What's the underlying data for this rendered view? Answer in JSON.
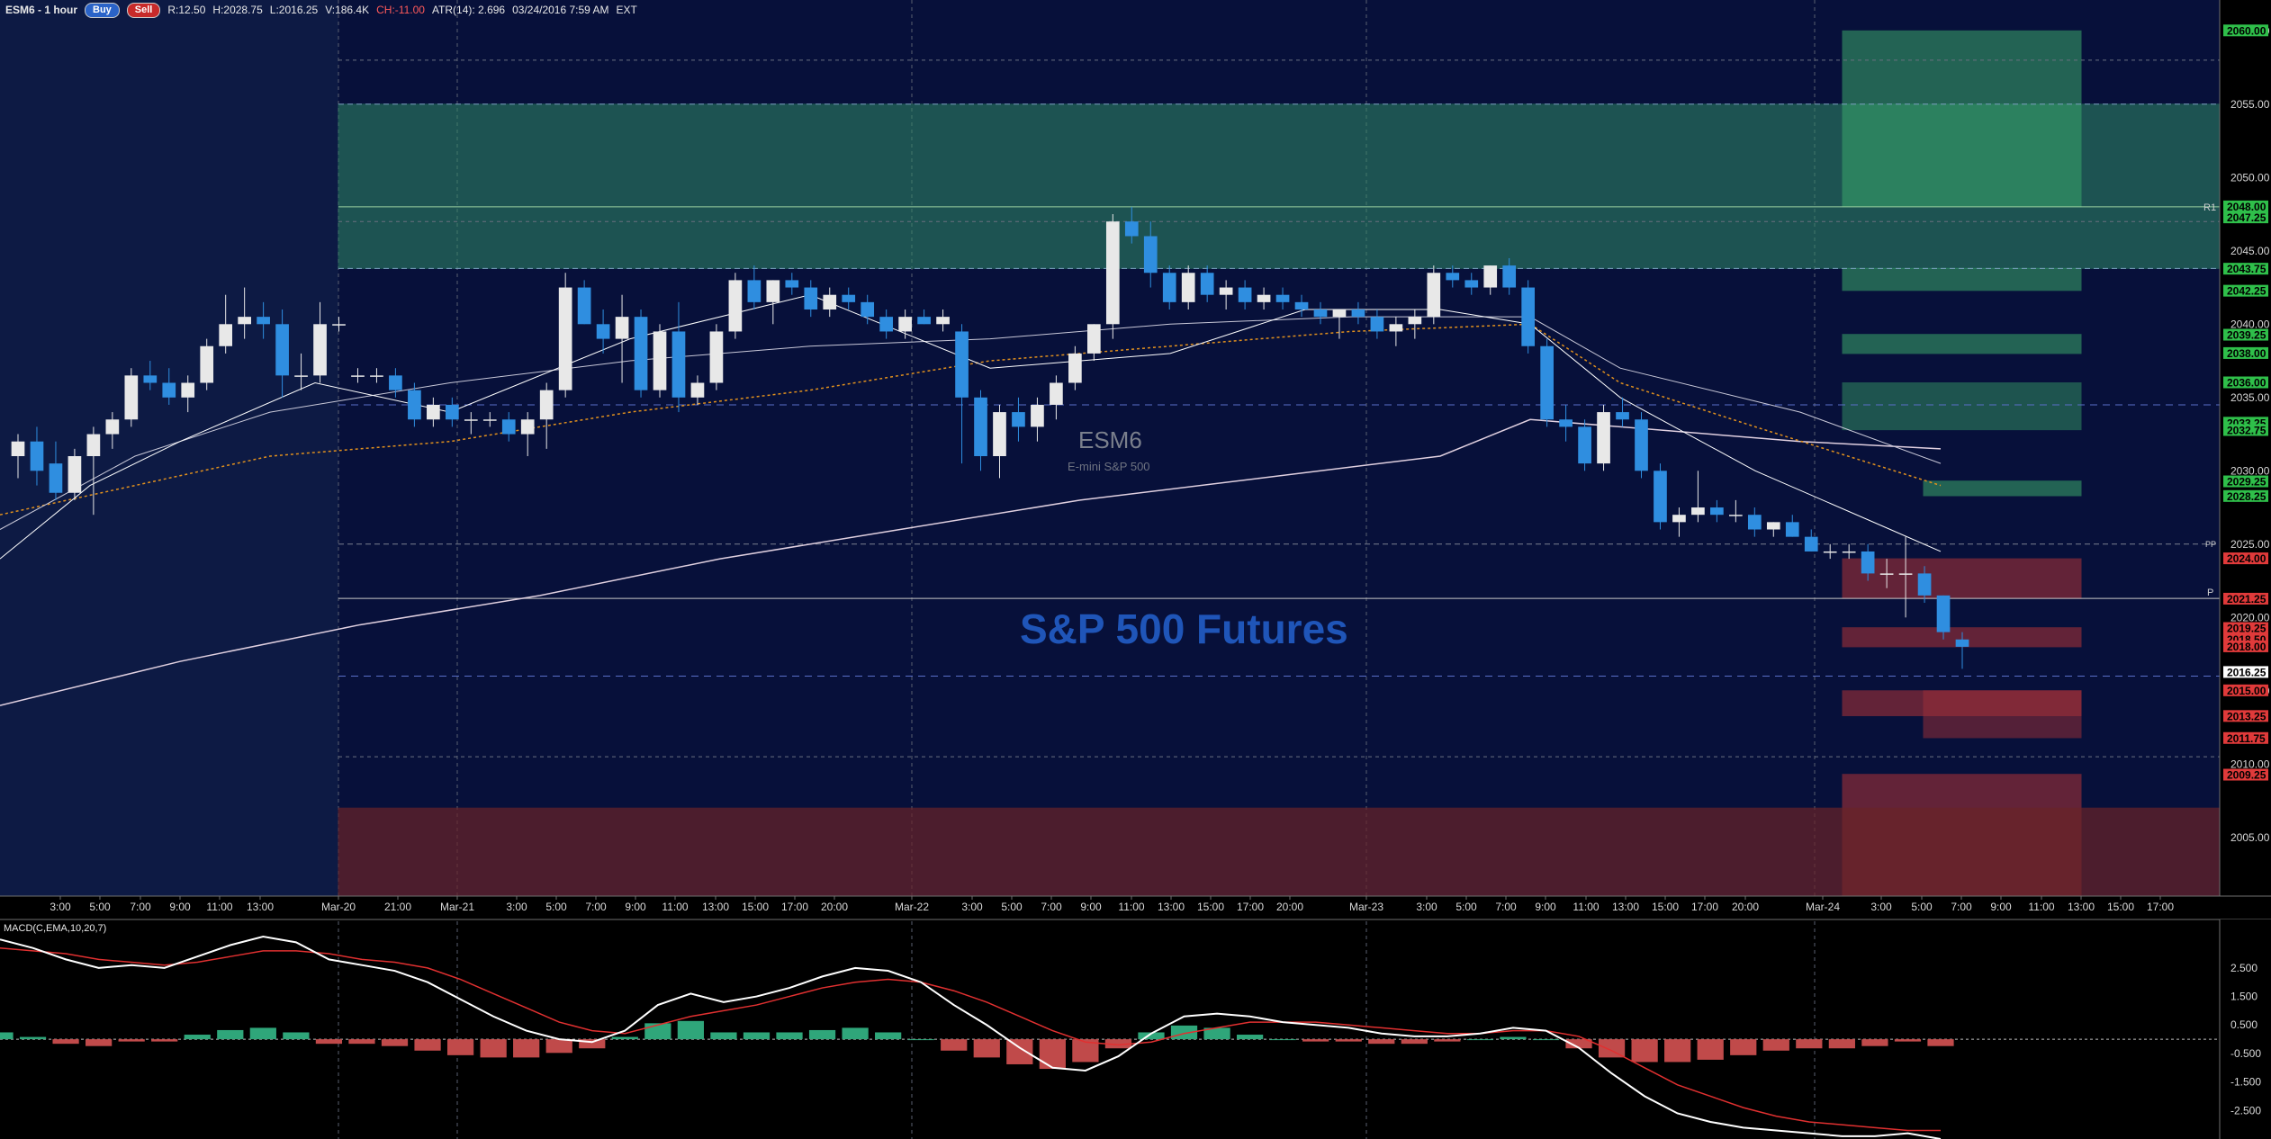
{
  "header": {
    "symbol_interval": "ESM6 - 1 hour",
    "buy_label": "Buy",
    "sell_label": "Sell",
    "stats": [
      "R:12.50",
      "H:2028.75",
      "L:2016.25",
      "V:186.4K"
    ],
    "change": "CH:-11.00",
    "stats2": [
      "ATR(14): 2.696",
      "03/24/2016 7:59 AM",
      "EXT"
    ]
  },
  "title": "S&P 500 Futures",
  "watermark": {
    "symbol": "ESM6",
    "description": "E-mini S&P 500"
  },
  "macd_label": "MACD(C,EMA,10,20,7)",
  "colors": {
    "background": "#000000",
    "session_bg": "#0d1a44",
    "green_zone": "#2f8a66",
    "red_zone": "#6a2328",
    "up_candle": "#e8e8e8",
    "down_candle": "#2f8ee0",
    "macd_line": "#ffffff",
    "signal_line": "#e03030",
    "hist_pos": "#2fa67a",
    "hist_neg": "#c04a4a",
    "ema_orange": "#e0901e",
    "axis_text": "#d8d8d8"
  },
  "chart_data": [
    {
      "type": "candlestick",
      "title": "ESM6 - 1 hour",
      "ylim": [
        2001,
        2061
      ],
      "y_ticks": [
        "2005.00",
        "2010.00",
        "2015.00",
        "2020.00",
        "2025.00",
        "2030.00",
        "2035.00",
        "2040.00",
        "2045.00",
        "2050.00",
        "2055.00",
        "2060.00"
      ],
      "x_tick_labels": [
        "3:00",
        "5:00",
        "7:00",
        "9:00",
        "11:00",
        "13:00",
        "Mar-20",
        "21:00",
        "Mar-21",
        "3:00",
        "5:00",
        "7:00",
        "9:00",
        "11:00",
        "13:00",
        "15:00",
        "17:00",
        "20:00",
        "Mar-22",
        "3:00",
        "5:00",
        "7:00",
        "9:00",
        "11:00",
        "13:00",
        "15:00",
        "17:00",
        "20:00",
        "Mar-23",
        "3:00",
        "5:00",
        "7:00",
        "9:00",
        "11:00",
        "13:00",
        "15:00",
        "17:00",
        "20:00",
        "Mar-24",
        "3:00",
        "5:00",
        "7:00",
        "9:00",
        "11:00",
        "13:00",
        "15:00",
        "17:00"
      ],
      "candles": [
        [
          2031.0,
          2032.5,
          2029.5,
          2032.0
        ],
        [
          2032.0,
          2033.0,
          2029.0,
          2030.0
        ],
        [
          2030.5,
          2032.0,
          2028.0,
          2028.5
        ],
        [
          2028.5,
          2031.5,
          2028.0,
          2031.0
        ],
        [
          2031.0,
          2033.0,
          2027.0,
          2032.5
        ],
        [
          2032.5,
          2034.0,
          2031.5,
          2033.5
        ],
        [
          2033.5,
          2037.0,
          2033.0,
          2036.5
        ],
        [
          2036.5,
          2037.5,
          2035.5,
          2036.0
        ],
        [
          2036.0,
          2037.0,
          2034.5,
          2035.0
        ],
        [
          2035.0,
          2036.5,
          2034.0,
          2036.0
        ],
        [
          2036.0,
          2039.0,
          2035.5,
          2038.5
        ],
        [
          2038.5,
          2042.0,
          2038.0,
          2040.0
        ],
        [
          2040.0,
          2042.5,
          2039.0,
          2040.5
        ],
        [
          2040.5,
          2041.5,
          2039.0,
          2040.0
        ],
        [
          2040.0,
          2041.0,
          2035.0,
          2036.5
        ],
        [
          2036.5,
          2038.0,
          2035.5,
          2036.5
        ],
        [
          2036.5,
          2041.5,
          2036.0,
          2040.0
        ],
        [
          2040.0,
          2040.5,
          2039.5,
          2040.0
        ],
        [
          2036.5,
          2037.0,
          2036.0,
          2036.5
        ],
        [
          2036.5,
          2037.0,
          2036.0,
          2036.5
        ],
        [
          2036.5,
          2037.0,
          2035.0,
          2035.5
        ],
        [
          2035.5,
          2036.0,
          2033.0,
          2033.5
        ],
        [
          2033.5,
          2035.0,
          2033.0,
          2034.5
        ],
        [
          2034.5,
          2035.0,
          2033.0,
          2033.5
        ],
        [
          2033.5,
          2034.0,
          2032.5,
          2033.5
        ],
        [
          2033.5,
          2034.0,
          2033.0,
          2033.5
        ],
        [
          2033.5,
          2034.0,
          2032.0,
          2032.5
        ],
        [
          2032.5,
          2034.0,
          2031.0,
          2033.5
        ],
        [
          2033.5,
          2036.0,
          2031.5,
          2035.5
        ],
        [
          2035.5,
          2043.5,
          2035.0,
          2042.5
        ],
        [
          2042.5,
          2043.0,
          2040.0,
          2040.0
        ],
        [
          2040.0,
          2041.0,
          2038.0,
          2039.0
        ],
        [
          2039.0,
          2042.0,
          2036.0,
          2040.5
        ],
        [
          2040.5,
          2041.0,
          2035.0,
          2035.5
        ],
        [
          2035.5,
          2040.0,
          2035.0,
          2039.5
        ],
        [
          2039.5,
          2041.5,
          2034.0,
          2035.0
        ],
        [
          2035.0,
          2036.5,
          2034.5,
          2036.0
        ],
        [
          2036.0,
          2040.0,
          2035.5,
          2039.5
        ],
        [
          2039.5,
          2043.5,
          2039.0,
          2043.0
        ],
        [
          2043.0,
          2044.0,
          2041.0,
          2041.5
        ],
        [
          2041.5,
          2043.0,
          2040.0,
          2043.0
        ],
        [
          2043.0,
          2043.5,
          2042.0,
          2042.5
        ],
        [
          2042.5,
          2043.0,
          2040.5,
          2041.0
        ],
        [
          2041.0,
          2042.5,
          2040.5,
          2042.0
        ],
        [
          2042.0,
          2042.5,
          2041.0,
          2041.5
        ],
        [
          2041.5,
          2042.0,
          2040.0,
          2040.5
        ],
        [
          2040.5,
          2041.0,
          2039.0,
          2039.5
        ],
        [
          2039.5,
          2041.0,
          2039.0,
          2040.5
        ],
        [
          2040.5,
          2041.0,
          2040.0,
          2040.0
        ],
        [
          2040.0,
          2041.0,
          2039.5,
          2040.5
        ],
        [
          2039.5,
          2040.0,
          2030.5,
          2035.0
        ],
        [
          2035.0,
          2035.5,
          2030.0,
          2031.0
        ],
        [
          2031.0,
          2034.5,
          2029.5,
          2034.0
        ],
        [
          2034.0,
          2035.0,
          2032.0,
          2033.0
        ],
        [
          2033.0,
          2035.0,
          2032.0,
          2034.5
        ],
        [
          2034.5,
          2036.5,
          2033.5,
          2036.0
        ],
        [
          2036.0,
          2038.5,
          2035.5,
          2038.0
        ],
        [
          2038.0,
          2040.0,
          2037.5,
          2040.0
        ],
        [
          2040.0,
          2047.5,
          2039.0,
          2047.0
        ],
        [
          2047.0,
          2048.0,
          2045.5,
          2046.0
        ],
        [
          2046.0,
          2047.0,
          2042.5,
          2043.5
        ],
        [
          2043.5,
          2044.0,
          2041.0,
          2041.5
        ],
        [
          2041.5,
          2044.0,
          2041.0,
          2043.5
        ],
        [
          2043.5,
          2044.0,
          2041.5,
          2042.0
        ],
        [
          2042.0,
          2043.0,
          2041.0,
          2042.5
        ],
        [
          2042.5,
          2043.0,
          2041.0,
          2041.5
        ],
        [
          2041.5,
          2042.5,
          2041.0,
          2042.0
        ],
        [
          2042.0,
          2042.5,
          2041.0,
          2041.5
        ],
        [
          2041.5,
          2042.0,
          2040.5,
          2041.0
        ],
        [
          2041.0,
          2041.5,
          2040.0,
          2040.5
        ],
        [
          2040.5,
          2041.0,
          2039.0,
          2041.0
        ],
        [
          2041.0,
          2041.5,
          2040.0,
          2040.5
        ],
        [
          2040.5,
          2041.0,
          2039.0,
          2039.5
        ],
        [
          2039.5,
          2040.5,
          2038.5,
          2040.0
        ],
        [
          2040.0,
          2041.0,
          2039.0,
          2040.5
        ],
        [
          2040.5,
          2044.0,
          2040.0,
          2043.5
        ],
        [
          2043.5,
          2044.0,
          2042.5,
          2043.0
        ],
        [
          2043.0,
          2043.5,
          2042.0,
          2042.5
        ],
        [
          2042.5,
          2044.0,
          2042.0,
          2044.0
        ],
        [
          2044.0,
          2044.5,
          2042.0,
          2042.5
        ],
        [
          2042.5,
          2043.0,
          2038.0,
          2038.5
        ],
        [
          2038.5,
          2039.0,
          2033.0,
          2033.5
        ],
        [
          2033.5,
          2034.5,
          2032.0,
          2033.0
        ],
        [
          2033.0,
          2033.5,
          2030.0,
          2030.5
        ],
        [
          2030.5,
          2034.5,
          2030.0,
          2034.0
        ],
        [
          2034.0,
          2035.0,
          2033.0,
          2033.5
        ],
        [
          2033.5,
          2034.0,
          2029.5,
          2030.0
        ],
        [
          2030.0,
          2030.5,
          2026.0,
          2026.5
        ],
        [
          2026.5,
          2027.5,
          2025.5,
          2027.0
        ],
        [
          2027.0,
          2030.0,
          2026.5,
          2027.5
        ],
        [
          2027.5,
          2028.0,
          2026.5,
          2027.0
        ],
        [
          2027.0,
          2028.0,
          2026.5,
          2027.0
        ],
        [
          2027.0,
          2027.5,
          2025.5,
          2026.0
        ],
        [
          2026.0,
          2026.5,
          2025.5,
          2026.5
        ],
        [
          2026.5,
          2027.0,
          2025.5,
          2025.5
        ],
        [
          2025.5,
          2026.0,
          2024.5,
          2024.5
        ],
        [
          2024.5,
          2025.0,
          2024.0,
          2024.5
        ],
        [
          2024.5,
          2025.0,
          2024.0,
          2024.5
        ],
        [
          2024.5,
          2025.0,
          2022.5,
          2023.0
        ],
        [
          2023.0,
          2024.0,
          2022.0,
          2023.0
        ],
        [
          2023.0,
          2025.5,
          2020.0,
          2023.0
        ],
        [
          2023.0,
          2023.5,
          2021.0,
          2021.5
        ],
        [
          2021.5,
          2021.5,
          2018.5,
          2019.0
        ],
        [
          2018.5,
          2019.0,
          2016.5,
          2018.0
        ]
      ],
      "price_labels": [
        {
          "value": "2060.00",
          "color": "#2fbf4a"
        },
        {
          "value": "2048.00",
          "color": "#2fbf4a"
        },
        {
          "value": "2047.25",
          "color": "#2fbf4a"
        },
        {
          "value": "2043.75",
          "color": "#2fbf4a"
        },
        {
          "value": "2042.25",
          "color": "#2fbf4a"
        },
        {
          "value": "2039.25",
          "color": "#2fbf4a"
        },
        {
          "value": "2038.00",
          "color": "#2fbf4a"
        },
        {
          "value": "2036.00",
          "color": "#2fbf4a"
        },
        {
          "value": "2033.25",
          "color": "#2fbf4a"
        },
        {
          "value": "2032.75",
          "color": "#2fbf4a"
        },
        {
          "value": "2029.25",
          "color": "#2fbf4a"
        },
        {
          "value": "2028.25",
          "color": "#2fbf4a"
        },
        {
          "value": "2024.00",
          "color": "#e03a3a"
        },
        {
          "value": "2021.25",
          "color": "#e03a3a"
        },
        {
          "value": "2019.25",
          "color": "#e03a3a"
        },
        {
          "value": "2018.50",
          "color": "#e03a3a"
        },
        {
          "value": "2018.00",
          "color": "#e03a3a"
        },
        {
          "value": "2016.25",
          "color": "#ffffff"
        },
        {
          "value": "2015.00",
          "color": "#e03a3a"
        },
        {
          "value": "2013.25",
          "color": "#e03a3a"
        },
        {
          "value": "2011.75",
          "color": "#e03a3a"
        },
        {
          "value": "2009.25",
          "color": "#e03a3a"
        }
      ],
      "level_tags": [
        "R1",
        "PP",
        "P"
      ]
    },
    {
      "type": "line",
      "title": "MACD(C,EMA,10,20,7)",
      "ylim": [
        -3.5,
        4.2
      ],
      "y_ticks": [
        "2.500",
        "1.500",
        "0.500",
        "-0.500",
        "-1.500",
        "-2.500"
      ],
      "series": [
        {
          "values": [
            3.5,
            3.2,
            2.8,
            2.5,
            2.6,
            2.5,
            2.9,
            3.3,
            3.6,
            3.4,
            2.8,
            2.6,
            2.4,
            2.0,
            1.4,
            0.8,
            0.3,
            0.0,
            -0.1,
            0.3,
            1.2,
            1.6,
            1.3,
            1.5,
            1.8,
            2.2,
            2.5,
            2.4,
            2.0,
            1.2,
            0.5,
            -0.3,
            -1.0,
            -1.1,
            -0.6,
            0.2,
            0.8,
            0.9,
            0.8,
            0.6,
            0.5,
            0.4,
            0.2,
            0.1,
            0.1,
            0.2,
            0.4,
            0.3,
            -0.3,
            -1.2,
            -2.0,
            -2.6,
            -2.9,
            -3.1,
            -3.2,
            -3.3,
            -3.4,
            -3.4,
            -3.3,
            -3.5
          ]
        },
        {
          "values": [
            3.2,
            3.1,
            3.0,
            2.8,
            2.7,
            2.6,
            2.7,
            2.9,
            3.1,
            3.1,
            3.0,
            2.8,
            2.7,
            2.5,
            2.1,
            1.6,
            1.1,
            0.6,
            0.3,
            0.2,
            0.5,
            0.8,
            1.0,
            1.2,
            1.5,
            1.8,
            2.0,
            2.1,
            2.0,
            1.7,
            1.3,
            0.8,
            0.3,
            -0.1,
            -0.2,
            -0.1,
            0.2,
            0.4,
            0.6,
            0.6,
            0.6,
            0.5,
            0.4,
            0.3,
            0.2,
            0.2,
            0.3,
            0.3,
            0.1,
            -0.4,
            -1.0,
            -1.6,
            -2.0,
            -2.4,
            -2.7,
            -2.9,
            -3.0,
            -3.1,
            -3.2,
            -3.2
          ]
        }
      ]
    }
  ]
}
